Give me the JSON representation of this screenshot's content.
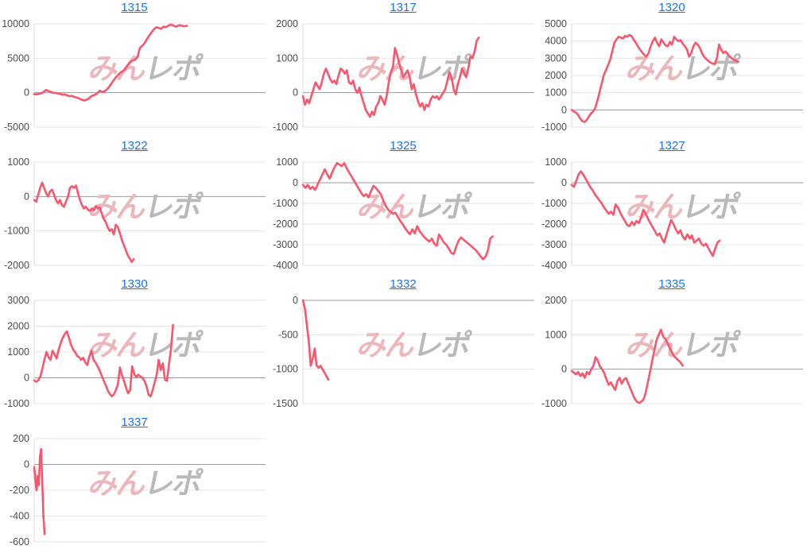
{
  "page": {
    "background": "#ffffff"
  },
  "style": {
    "line_color": "#f8566c",
    "grid_color": "#e6e6e6",
    "zero_line_color": "#999999",
    "axis_line_color": "#d9d9d9",
    "axis_label_color": "#4c4c4c",
    "title_color": "#1a73e8"
  },
  "watermark": {
    "text_pink": "みん",
    "text_gray": "レポ",
    "pink_color": "#ecb6bb",
    "gray_color": "#b9b9b9"
  },
  "chart_data": [
    {
      "type": "line",
      "title": "1315",
      "legend": "none",
      "grid": "horizontal",
      "xlabel": "",
      "ylabel": "",
      "y_ticks": [
        10000,
        5000,
        0,
        -5000
      ],
      "ylim": [
        -5000,
        10000
      ],
      "x_end": 0.66,
      "values": [
        -200,
        -250,
        -150,
        -100,
        100,
        400,
        250,
        150,
        0,
        -50,
        -100,
        -150,
        -300,
        -250,
        -400,
        -500,
        -450,
        -600,
        -700,
        -800,
        -1000,
        -1100,
        -1050,
        -900,
        -600,
        -400,
        -300,
        0,
        300,
        100,
        200,
        500,
        900,
        1400,
        1900,
        2300,
        2700,
        3000,
        3200,
        3600,
        4100,
        4500,
        4700,
        4800,
        5200,
        6500,
        6800,
        7200,
        7800,
        8300,
        8800,
        9200,
        9500,
        9400,
        9300,
        9600,
        9500,
        9700,
        9900,
        9800,
        9600,
        9700,
        9800,
        9700,
        9650,
        9700
      ]
    },
    {
      "type": "line",
      "title": "1317",
      "legend": "none",
      "grid": "horizontal",
      "xlabel": "",
      "ylabel": "",
      "y_ticks": [
        2000,
        1000,
        0,
        -1000
      ],
      "ylim": [
        -1000,
        2000
      ],
      "x_end": 0.76,
      "values": [
        -100,
        -350,
        -200,
        -300,
        -100,
        100,
        300,
        200,
        100,
        300,
        550,
        700,
        550,
        400,
        300,
        350,
        250,
        500,
        700,
        650,
        550,
        650,
        300,
        250,
        350,
        100,
        0,
        150,
        -100,
        -300,
        -500,
        -600,
        -700,
        -550,
        -650,
        -400,
        -300,
        -100,
        -200,
        -350,
        -100,
        300,
        600,
        750,
        1300,
        1100,
        850,
        650,
        450,
        550,
        650,
        450,
        100,
        250,
        -50,
        -250,
        -400,
        -300,
        -500,
        -350,
        -400,
        -200,
        -100,
        -150,
        -100,
        -200,
        -100,
        0,
        100,
        350,
        600,
        450,
        100,
        -50,
        250,
        450,
        700,
        550,
        450,
        700,
        1050,
        1000,
        1200,
        1500,
        1600
      ]
    },
    {
      "type": "line",
      "title": "1320",
      "legend": "none",
      "grid": "horizontal",
      "xlabel": "",
      "ylabel": "",
      "y_ticks": [
        5000,
        4000,
        3000,
        2000,
        1000,
        0,
        -1000
      ],
      "ylim": [
        -1000,
        5000
      ],
      "x_end": 0.72,
      "values": [
        0,
        -100,
        -150,
        -300,
        -500,
        -650,
        -700,
        -600,
        -400,
        -200,
        -100,
        100,
        500,
        1000,
        1500,
        2000,
        2300,
        2600,
        2900,
        3400,
        3900,
        4100,
        4250,
        4200,
        4150,
        4300,
        4250,
        4350,
        4300,
        4100,
        3900,
        3700,
        3500,
        3350,
        3200,
        3100,
        3300,
        3700,
        4000,
        4200,
        3900,
        3700,
        4100,
        3900,
        3750,
        3700,
        3950,
        3800,
        4250,
        4100,
        4000,
        4050,
        3850,
        3700,
        3500,
        3100,
        3300,
        3700,
        3900,
        3800,
        3600,
        3300,
        3100,
        2950,
        2850,
        2750,
        2700,
        2650,
        3000,
        3800,
        3500,
        3300,
        3400,
        3250,
        3100,
        3000,
        2900,
        2850,
        2800
      ]
    },
    {
      "type": "line",
      "title": "1322",
      "legend": "none",
      "grid": "horizontal",
      "xlabel": "",
      "ylabel": "",
      "y_ticks": [
        1000,
        0,
        -1000,
        -2000
      ],
      "ylim": [
        -2000,
        1000
      ],
      "x_end": 0.43,
      "values": [
        -100,
        -150,
        50,
        250,
        400,
        250,
        100,
        0,
        150,
        200,
        50,
        -100,
        -200,
        -100,
        -250,
        -300,
        -150,
        0,
        250,
        300,
        250,
        320,
        100,
        -100,
        -250,
        -350,
        -300,
        -380,
        -420,
        -350,
        -400,
        -280,
        -350,
        -320,
        -500,
        -650,
        -750,
        -900,
        -1000,
        -950,
        -1100,
        -820,
        -880,
        -1050,
        -1250,
        -1400,
        -1550,
        -1700,
        -1800,
        -1900,
        -1820
      ]
    },
    {
      "type": "line",
      "title": "1325",
      "legend": "none",
      "grid": "horizontal",
      "xlabel": "",
      "ylabel": "",
      "y_ticks": [
        1000,
        0,
        -1000,
        -2000,
        -3000,
        -4000
      ],
      "ylim": [
        -4000,
        1000
      ],
      "x_end": 0.82,
      "values": [
        -100,
        -250,
        -100,
        -300,
        -200,
        -350,
        -100,
        150,
        400,
        650,
        400,
        200,
        500,
        750,
        950,
        880,
        800,
        950,
        700,
        500,
        300,
        100,
        -100,
        -300,
        -500,
        -650,
        -550,
        -700,
        -400,
        -150,
        -250,
        -400,
        -550,
        -850,
        -1100,
        -1300,
        -1400,
        -1500,
        -1450,
        -1650,
        -1850,
        -2000,
        -2200,
        -2350,
        -2500,
        -2250,
        -2450,
        -2100,
        -2350,
        -2500,
        -2650,
        -2750,
        -2850,
        -2700,
        -2950,
        -3050,
        -2500,
        -2700,
        -2900,
        -3000,
        -3200,
        -3400,
        -3450,
        -3100,
        -2800,
        -2650,
        -2750,
        -2850,
        -2950,
        -3050,
        -3150,
        -3250,
        -3400,
        -3550,
        -3700,
        -3600,
        -3300,
        -2700,
        -2600
      ]
    },
    {
      "type": "line",
      "title": "1327",
      "legend": "none",
      "grid": "horizontal",
      "xlabel": "",
      "ylabel": "",
      "y_ticks": [
        1000,
        0,
        -1000,
        -2000,
        -3000,
        -4000
      ],
      "ylim": [
        -4000,
        1000
      ],
      "x_end": 0.64,
      "values": [
        -100,
        -200,
        100,
        400,
        550,
        400,
        200,
        0,
        -200,
        -350,
        -550,
        -700,
        -850,
        -1000,
        -1200,
        -1350,
        -1500,
        -1400,
        -1550,
        -1050,
        -1200,
        -1450,
        -1650,
        -1850,
        -2050,
        -2100,
        -1900,
        -2050,
        -1850,
        -1950,
        -1700,
        -1300,
        -1500,
        -1750,
        -1950,
        -2150,
        -2350,
        -2550,
        -2450,
        -2700,
        -2900,
        -2500,
        -2150,
        -1800,
        -2000,
        -2250,
        -2450,
        -2300,
        -2600,
        -2750,
        -2500,
        -2700,
        -2550,
        -2900,
        -2800,
        -2700,
        -2950,
        -3050,
        -2950,
        -3150,
        -3350,
        -3550,
        -3200,
        -2900,
        -2800
      ]
    },
    {
      "type": "line",
      "title": "1330",
      "legend": "none",
      "grid": "horizontal",
      "xlabel": "",
      "ylabel": "",
      "y_ticks": [
        3000,
        2000,
        1000,
        0,
        -1000
      ],
      "ylim": [
        -1000,
        3000
      ],
      "x_end": 0.6,
      "values": [
        -100,
        -150,
        -100,
        50,
        350,
        700,
        1000,
        800,
        700,
        1050,
        900,
        750,
        1100,
        1350,
        1550,
        1700,
        1800,
        1550,
        1300,
        1100,
        1000,
        850,
        800,
        700,
        780,
        600,
        500,
        820,
        1050,
        700,
        600,
        450,
        300,
        100,
        -100,
        -280,
        -480,
        -620,
        -720,
        -650,
        -480,
        -250,
        400,
        100,
        -120,
        -380,
        -600,
        -480,
        450,
        150,
        30,
        120,
        50,
        0,
        -120,
        -320,
        -650,
        -720,
        -480,
        -180,
        120,
        700,
        300,
        560,
        -60,
        -120,
        520,
        1100,
        2050
      ]
    },
    {
      "type": "line",
      "title": "1332",
      "legend": "none",
      "grid": "horizontal",
      "xlabel": "",
      "ylabel": "",
      "y_ticks": [
        0,
        -500,
        -1000,
        -1500
      ],
      "ylim": [
        -1500,
        0
      ],
      "x_end": 0.11,
      "values": [
        0,
        -120,
        -350,
        -600,
        -950,
        -850,
        -700,
        -950,
        -980,
        -950,
        -1000,
        -1050,
        -1100,
        -1150
      ]
    },
    {
      "type": "line",
      "title": "1335",
      "legend": "none",
      "grid": "horizontal",
      "xlabel": "",
      "ylabel": "",
      "y_ticks": [
        2000,
        1000,
        0,
        -1000
      ],
      "ylim": [
        -1000,
        2000
      ],
      "x_end": 0.48,
      "values": [
        -50,
        -100,
        -150,
        -80,
        -200,
        -120,
        -250,
        -80,
        -150,
        0,
        100,
        350,
        250,
        80,
        0,
        -120,
        -300,
        -450,
        -380,
        -500,
        -600,
        -350,
        -250,
        -420,
        -300,
        -260,
        -420,
        -560,
        -720,
        -860,
        -950,
        -980,
        -940,
        -880,
        -680,
        -380,
        -80,
        250,
        550,
        850,
        1000,
        1150,
        950,
        880,
        760,
        620,
        500,
        380,
        320,
        260,
        200,
        100
      ]
    },
    {
      "type": "line",
      "title": "1337",
      "legend": "none",
      "grid": "horizontal",
      "xlabel": "",
      "ylabel": "",
      "y_ticks": [
        200,
        0,
        -200,
        -400,
        -600
      ],
      "ylim": [
        -600,
        200
      ],
      "x_end": 0.045,
      "values": [
        -20,
        -120,
        -200,
        -90,
        -160,
        60,
        120,
        -150,
        -400,
        -540
      ]
    }
  ]
}
